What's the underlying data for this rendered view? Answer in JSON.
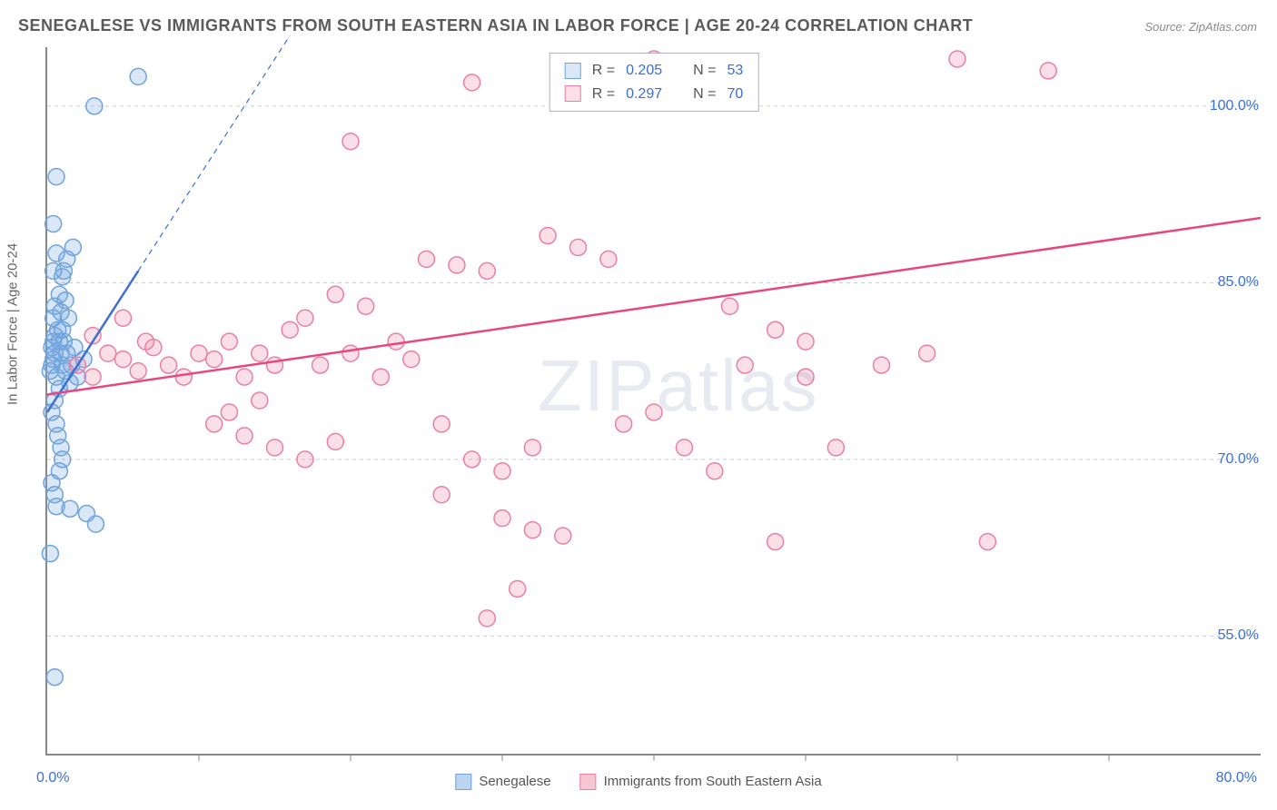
{
  "title": "SENEGALESE VS IMMIGRANTS FROM SOUTH EASTERN ASIA IN LABOR FORCE | AGE 20-24 CORRELATION CHART",
  "source": "Source: ZipAtlas.com",
  "ylabel": "In Labor Force | Age 20-24",
  "watermark_a": "ZIP",
  "watermark_b": "atlas",
  "chart": {
    "type": "scatter",
    "background_color": "#ffffff",
    "grid_color": "#cccccc",
    "axis_color": "#888888",
    "label_color": "#666666",
    "value_color": "#3b6fd4",
    "xlim": [
      0,
      80
    ],
    "ylim": [
      45,
      105
    ],
    "yticks": [
      55,
      70,
      85,
      100
    ],
    "ytick_labels": [
      "55.0%",
      "70.0%",
      "85.0%",
      "100.0%"
    ],
    "xtick_positions": [
      10,
      20,
      30,
      40,
      50,
      60,
      70
    ],
    "xtick_left": "0.0%",
    "xtick_right": "80.0%",
    "title_fontsize": 18,
    "label_fontsize": 15,
    "tick_fontsize": 16,
    "marker_radius": 9,
    "marker_stroke_width": 1.5,
    "line_width": 2.5
  },
  "series": [
    {
      "name": "Senegalese",
      "fill": "rgba(120,170,225,0.28)",
      "stroke": "#6fa3da",
      "line_color": "#3b6fd4",
      "R": "0.205",
      "N": "53",
      "regression": {
        "x1": 0,
        "y1": 74,
        "x2": 6,
        "y2": 86,
        "dash_x2": 16,
        "dash_y2": 106
      },
      "points": [
        [
          0.3,
          78
        ],
        [
          0.5,
          79
        ],
        [
          0.4,
          80
        ],
        [
          0.6,
          77
        ],
        [
          0.8,
          76
        ],
        [
          0.5,
          75
        ],
        [
          0.3,
          74
        ],
        [
          0.9,
          79
        ],
        [
          1.0,
          78
        ],
        [
          1.2,
          77.5
        ],
        [
          1.1,
          80
        ],
        [
          1.3,
          79
        ],
        [
          0.7,
          81
        ],
        [
          0.4,
          82
        ],
        [
          0.5,
          83
        ],
        [
          0.8,
          84
        ],
        [
          1.0,
          85.5
        ],
        [
          1.1,
          86
        ],
        [
          1.3,
          87
        ],
        [
          0.6,
          73
        ],
        [
          0.7,
          72
        ],
        [
          0.9,
          71
        ],
        [
          1.0,
          70
        ],
        [
          2.4,
          78.5
        ],
        [
          2.0,
          77
        ],
        [
          1.8,
          79.5
        ],
        [
          1.6,
          78
        ],
        [
          1.5,
          76.5
        ],
        [
          0.4,
          90
        ],
        [
          1.7,
          88
        ],
        [
          0.4,
          86
        ],
        [
          0.6,
          87.5
        ],
        [
          2.6,
          65.4
        ],
        [
          1.5,
          65.8
        ],
        [
          3.1,
          100
        ],
        [
          6.0,
          102.5
        ],
        [
          0.6,
          94
        ],
        [
          0.5,
          51.5
        ],
        [
          0.2,
          62
        ],
        [
          3.2,
          64.5
        ],
        [
          0.3,
          68
        ],
        [
          0.5,
          67
        ],
        [
          0.8,
          69
        ],
        [
          0.6,
          66
        ],
        [
          0.4,
          78.5
        ],
        [
          0.5,
          80.5
        ],
        [
          0.2,
          77.5
        ],
        [
          0.3,
          79.5
        ],
        [
          1.4,
          82
        ],
        [
          1.2,
          83.5
        ],
        [
          0.9,
          82.5
        ],
        [
          1.0,
          81
        ],
        [
          0.8,
          80
        ]
      ]
    },
    {
      "name": "Immigrants from South Eastern Asia",
      "fill": "rgba(240,140,170,0.28)",
      "stroke": "#ea7fa4",
      "line_color": "#e8467f",
      "R": "0.297",
      "N": "70",
      "regression": {
        "x1": 0,
        "y1": 75.5,
        "x2": 80,
        "y2": 90.5
      },
      "points": [
        [
          2,
          78
        ],
        [
          3,
          77
        ],
        [
          4,
          79
        ],
        [
          5,
          78.5
        ],
        [
          6,
          77.5
        ],
        [
          7,
          79.5
        ],
        [
          8,
          78
        ],
        [
          9,
          77
        ],
        [
          10,
          79
        ],
        [
          11,
          78.5
        ],
        [
          12,
          80
        ],
        [
          13,
          77
        ],
        [
          14,
          79
        ],
        [
          15,
          78
        ],
        [
          16,
          81
        ],
        [
          11,
          73
        ],
        [
          13,
          72
        ],
        [
          15,
          71
        ],
        [
          17,
          70
        ],
        [
          19,
          71.5
        ],
        [
          12,
          74
        ],
        [
          14,
          75
        ],
        [
          18,
          78
        ],
        [
          20,
          79
        ],
        [
          22,
          77
        ],
        [
          24,
          78.5
        ],
        [
          26,
          73
        ],
        [
          28,
          70
        ],
        [
          30,
          69
        ],
        [
          32,
          71
        ],
        [
          25,
          87
        ],
        [
          27,
          86.5
        ],
        [
          29,
          86
        ],
        [
          17,
          82
        ],
        [
          19,
          84
        ],
        [
          21,
          83
        ],
        [
          23,
          80
        ],
        [
          20,
          97
        ],
        [
          28,
          102
        ],
        [
          34,
          103
        ],
        [
          36,
          103
        ],
        [
          33,
          89
        ],
        [
          35,
          88
        ],
        [
          37,
          87
        ],
        [
          40,
          104
        ],
        [
          30,
          65
        ],
        [
          32,
          64
        ],
        [
          34,
          63.5
        ],
        [
          29,
          56.5
        ],
        [
          31,
          59
        ],
        [
          26,
          67
        ],
        [
          38,
          73
        ],
        [
          40,
          74
        ],
        [
          42,
          71
        ],
        [
          44,
          69
        ],
        [
          46,
          78
        ],
        [
          48,
          81
        ],
        [
          50,
          80
        ],
        [
          52,
          71
        ],
        [
          60,
          104
        ],
        [
          62,
          63
        ],
        [
          55,
          78
        ],
        [
          45,
          83
        ],
        [
          50,
          77
        ],
        [
          66,
          103
        ],
        [
          58,
          79
        ],
        [
          48,
          63
        ],
        [
          3,
          80.5
        ],
        [
          5,
          82
        ],
        [
          6.5,
          80
        ]
      ]
    }
  ],
  "legend_bottom": [
    {
      "label": "Senegalese",
      "fill": "rgba(120,170,225,0.5)",
      "stroke": "#6fa3da"
    },
    {
      "label": "Immigrants from South Eastern Asia",
      "fill": "rgba(240,140,170,0.5)",
      "stroke": "#ea7fa4"
    }
  ],
  "legend_top_labels": {
    "R": "R =",
    "N": "N ="
  }
}
